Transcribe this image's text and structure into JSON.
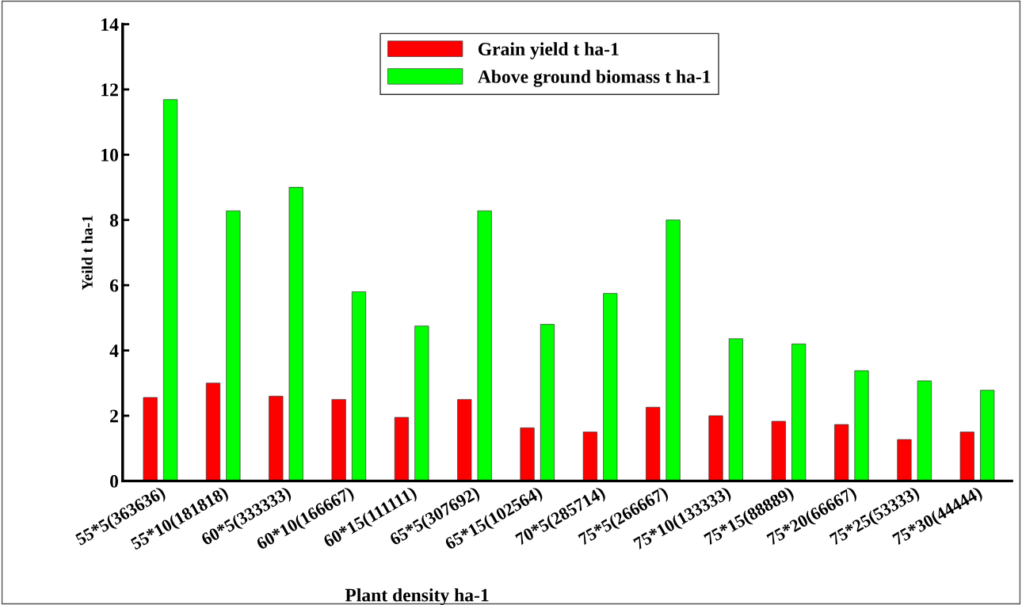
{
  "chart_data": {
    "type": "bar",
    "xlabel": "Plant density ha-1",
    "ylabel": "Yeild t ha-1",
    "categories": [
      "55*5(363636)",
      "55*10(181818)",
      "60*5(333333)",
      "60*10(166667)",
      "60*15(111111)",
      "65*5(307692)",
      "65*15(102564)",
      "70*5(285714)",
      "75*5(266667)",
      "75*10(133333)",
      "75*15(88889)",
      "75*20(66667)",
      "75*25(53333)",
      "75*30(44444)"
    ],
    "series": [
      {
        "name": "Grain yield t ha-1",
        "color": "#ff0000",
        "values": [
          2.56,
          3.0,
          2.6,
          2.5,
          1.95,
          2.5,
          1.63,
          1.5,
          2.26,
          2.0,
          1.83,
          1.73,
          1.27,
          1.5
        ]
      },
      {
        "name": "Above ground biomass t ha-1",
        "color": "#00ff00",
        "values": [
          11.69,
          8.28,
          9.0,
          5.8,
          4.75,
          8.28,
          4.8,
          5.75,
          8.0,
          4.36,
          4.2,
          3.38,
          3.07,
          2.78
        ]
      }
    ],
    "ylim": [
      0,
      14
    ],
    "yticks": [
      0,
      2,
      4,
      6,
      8,
      10,
      12,
      14
    ],
    "grid": false,
    "legend": "top"
  }
}
